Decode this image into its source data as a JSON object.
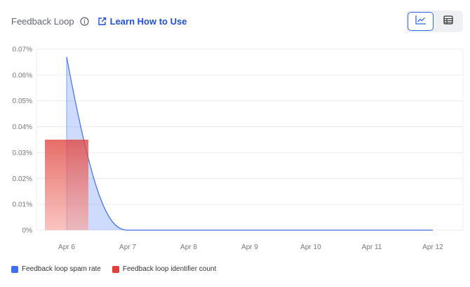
{
  "header": {
    "title": "Feedback Loop",
    "learn_link": "Learn How to Use"
  },
  "view_toggle": {
    "active": "chart",
    "options": [
      "chart",
      "table"
    ]
  },
  "colors": {
    "spam_rate": "#3e6ff2",
    "identifier_count": "#e0403a",
    "accent": "#1d4fd8"
  },
  "legend": [
    {
      "label": "Feedback loop spam rate",
      "color": "#3e6ff2"
    },
    {
      "label": "Feedback loop identifier count",
      "color": "#e0403a"
    }
  ],
  "chart_data": {
    "type": "area",
    "x": [
      "Apr 6",
      "Apr 7",
      "Apr 8",
      "Apr 9",
      "Apr 10",
      "Apr 11",
      "Apr 12"
    ],
    "y_ticks": [
      "0.07%",
      "0.06%",
      "0.05%",
      "0.04%",
      "0.03%",
      "0.02%",
      "0.01%",
      "0%"
    ],
    "ylim": [
      0,
      0.07
    ],
    "grid": true,
    "legend_position": "bottom-left",
    "series": [
      {
        "name": "Feedback loop spam rate",
        "type": "area",
        "values": [
          0.067,
          0,
          0,
          0,
          0,
          0,
          0
        ]
      },
      {
        "name": "Feedback loop identifier count",
        "type": "bar",
        "values": [
          0.035,
          0,
          0,
          0,
          0,
          0,
          0
        ]
      }
    ]
  }
}
